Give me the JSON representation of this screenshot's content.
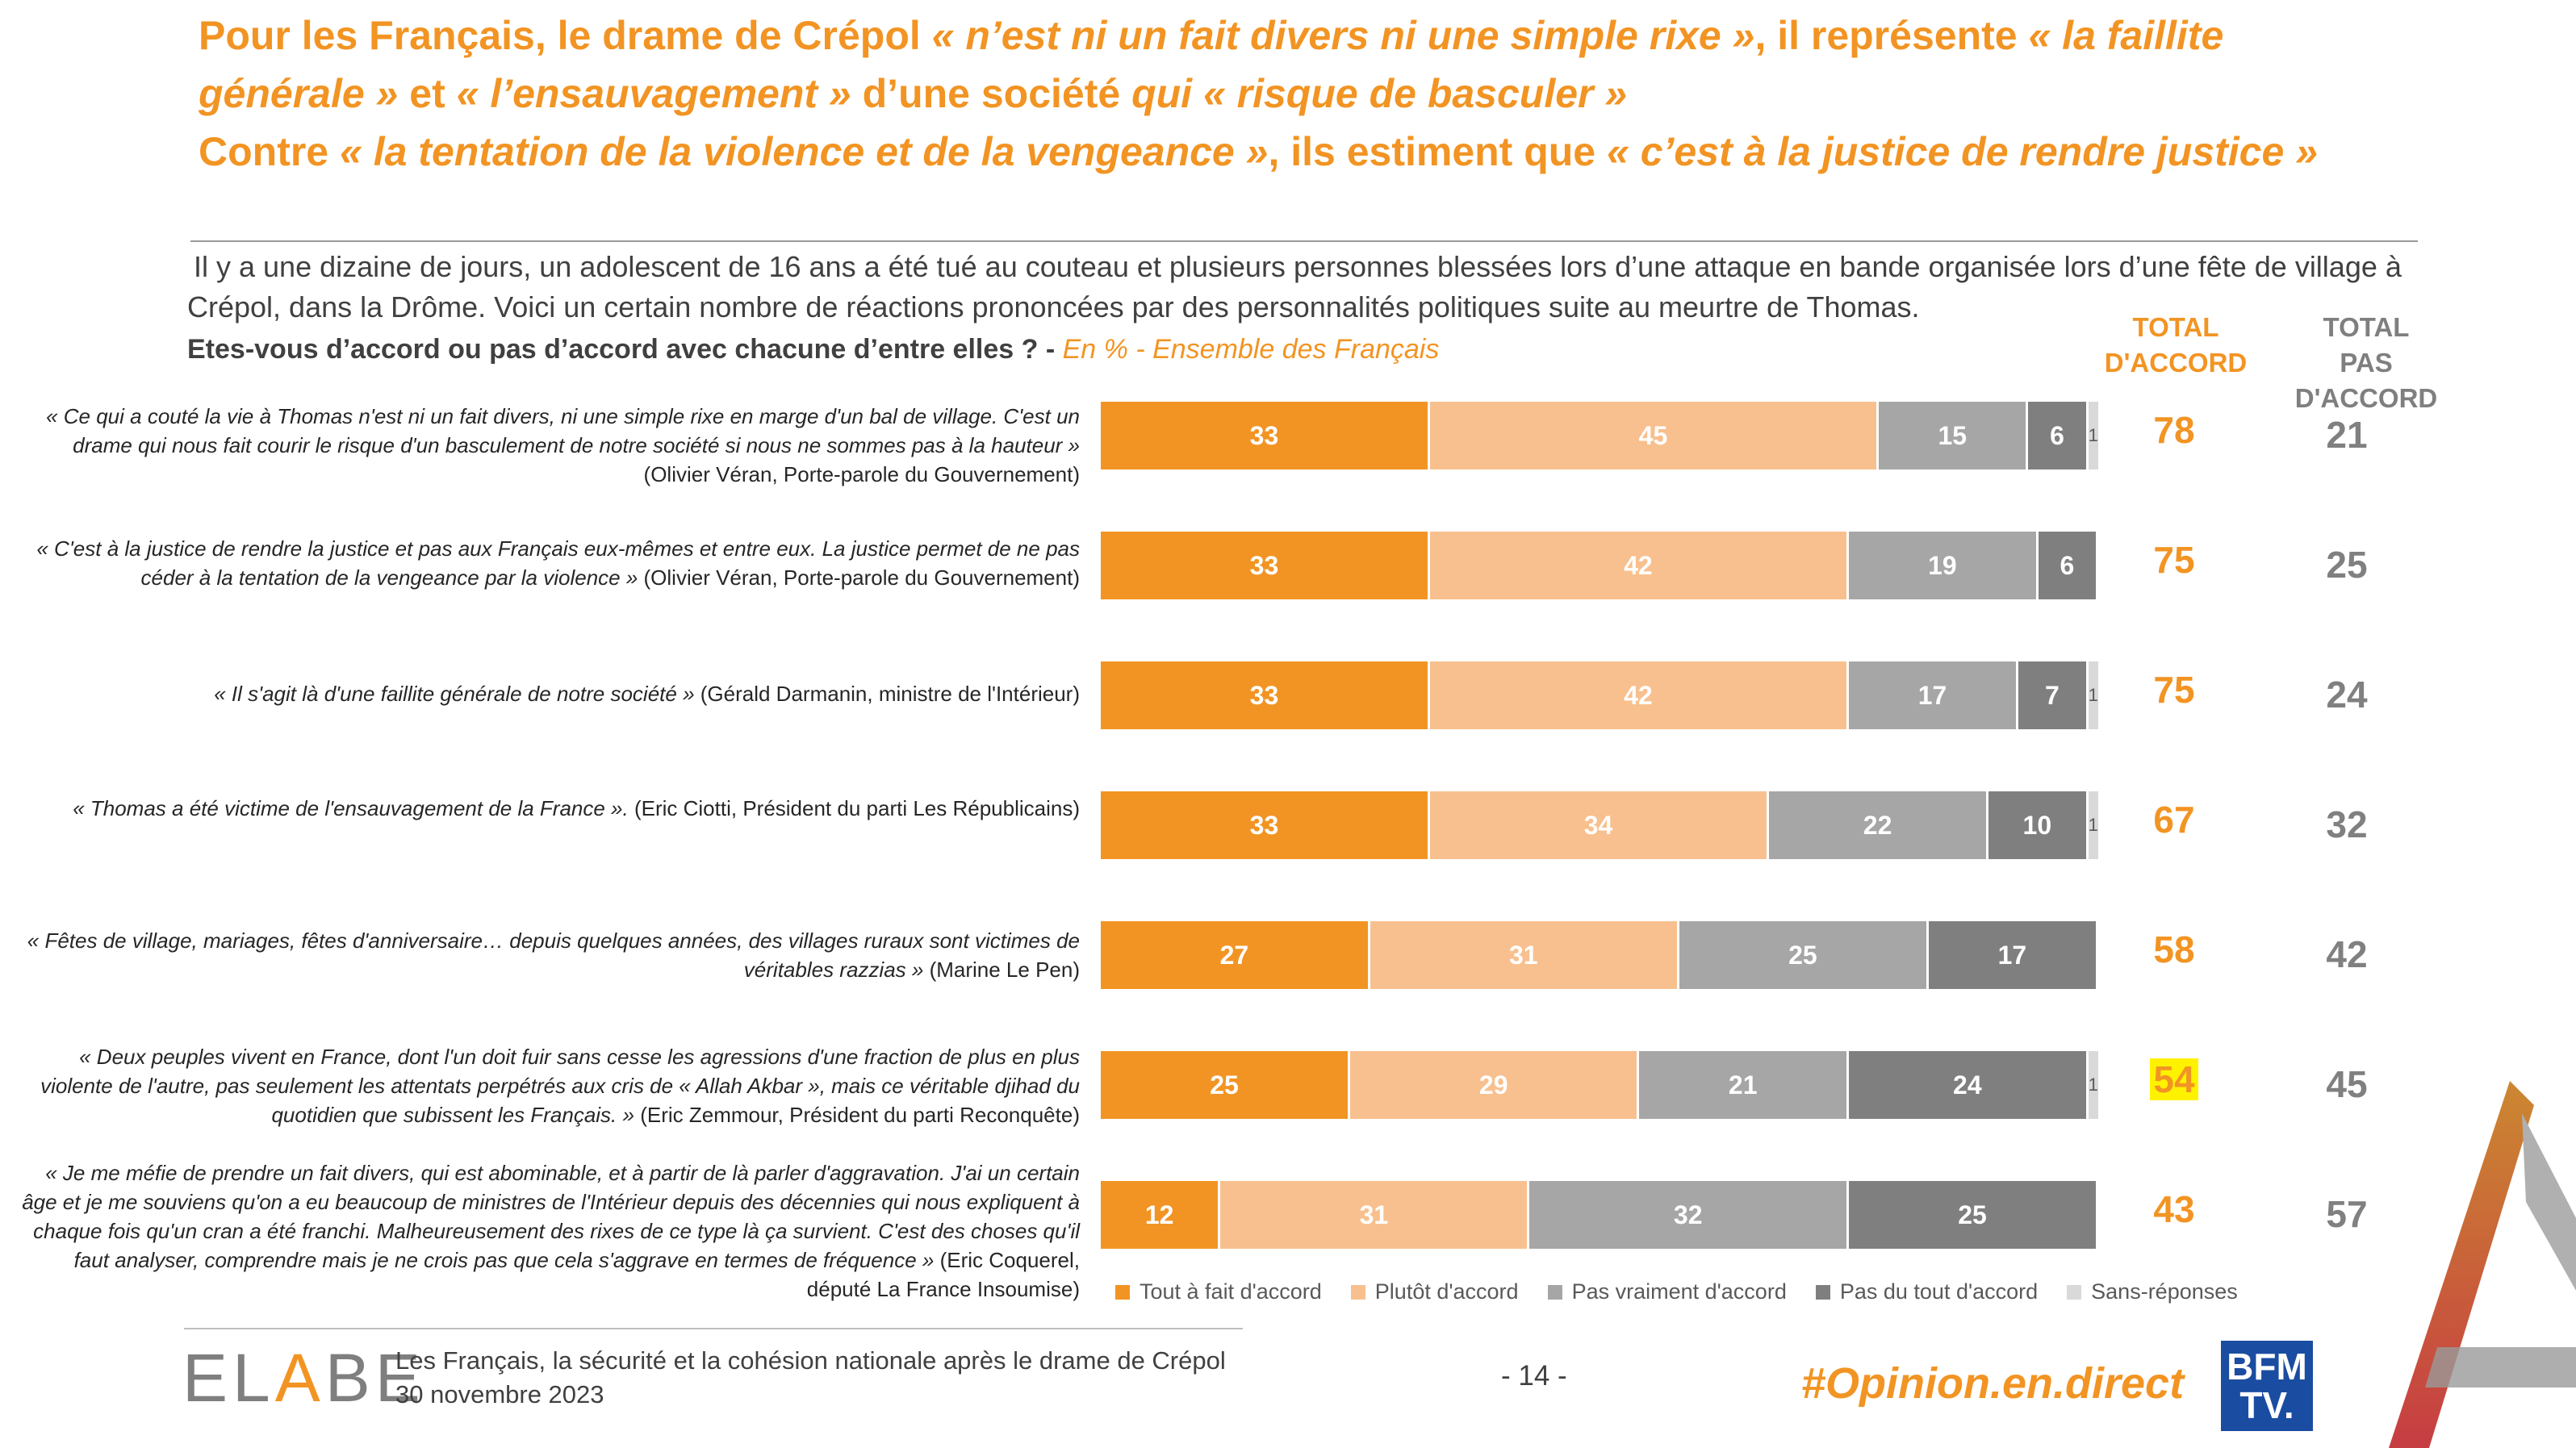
{
  "headline": {
    "line1_a": "Pour les Français, le drame de Crépol ",
    "line1_b": "« n’est ni un fait divers ni une simple rixe »",
    "line1_c": ", il représente ",
    "line1_d": "« la faillite générale »",
    "line1_e": " et ",
    "line1_f": "« l’ensauvagement »",
    "line1_g": " d’une société ",
    "line1_h": "qui « risque de basculer »",
    "line2_a": "Contre ",
    "line2_b": "« la tentation de la violence et de la vengeance »",
    "line2_c": ", ils estiment que ",
    "line2_d": "« c’est à la justice de rendre justice »"
  },
  "intro": "Il y a une dizaine de jours, un adolescent de 16 ans a été tué au couteau et plusieurs personnes blessées lors d’une attaque en bande organisée lors d’une fête de village à Crépol, dans la Drôme. Voici un certain nombre de réactions prononcées par des personnalités politiques suite au meurtre de Thomas.",
  "question": "Etes-vous d’accord ou pas d’accord avec chacune d’entre elles ? -",
  "question_sub": "En % - Ensemble des Français",
  "col_agree": [
    "TOTAL",
    "D'ACCORD"
  ],
  "col_disagree": [
    "TOTAL",
    "PAS D'ACCORD"
  ],
  "quotes": [
    {
      "quote": "« Ce qui a couté la vie à Thomas n'est ni un fait divers, ni une simple rixe en marge d'un bal de village. C'est un drame qui nous fait courir le risque d'un basculement de notre société si nous ne sommes pas à la hauteur »",
      "author": " (Olivier Véran, Porte-parole du Gouvernement)"
    },
    {
      "quote": "« C'est à la justice de rendre la justice et pas aux Français eux-mêmes et entre eux. La justice permet de ne pas céder à la tentation de la vengeance par la violence »",
      "author": " (Olivier Véran, Porte-parole du Gouvernement)"
    },
    {
      "quote": "« Il s'agit là d'une faillite générale de notre société »",
      "author": " (Gérald Darmanin, ministre de l'Intérieur)"
    },
    {
      "quote": "« Thomas a été victime de l'ensauvagement de la France ».",
      "author": " (Eric Ciotti, Président du parti Les Républicains)"
    },
    {
      "quote": "« Fêtes de village, mariages, fêtes d'anniversaire… depuis quelques années, des villages ruraux sont victimes de véritables razzias »",
      "author": " (Marine Le Pen)"
    },
    {
      "quote": "« Deux peuples vivent en France, dont l'un doit fuir sans cesse les agressions d'une fraction de plus en plus violente de l'autre, pas seulement les attentats perpétrés aux cris de « Allah Akbar », mais ce véritable djihad du quotidien que subissent les Français. »",
      "author": " (Eric Zemmour, Président du parti Reconquête)"
    },
    {
      "quote": "« Je me méfie de prendre un fait divers, qui est abominable, et à partir de là parler d'aggravation. J'ai un certain âge et je me souviens qu'on a eu beaucoup de ministres de l'Intérieur depuis des décennies qui nous expliquent à chaque fois qu'un cran a été franchi. Malheureusement des rixes de ce type là ça survient. C'est des choses qu'il faut analyser, comprendre mais je ne crois pas que cela s'aggrave en termes de fréquence »",
      "author": " (Eric Coquerel, député La France Insoumise)"
    }
  ],
  "chart_data": {
    "type": "bar",
    "orientation": "horizontal",
    "stacked": true,
    "categories": [
      "Véran 1",
      "Véran 2",
      "Darmanin",
      "Ciotti",
      "Le Pen",
      "Zemmour",
      "Coquerel"
    ],
    "series": [
      {
        "name": "Tout à fait d'accord",
        "color": "#F29423",
        "values": [
          33,
          33,
          33,
          33,
          27,
          25,
          12
        ]
      },
      {
        "name": "Plutôt d'accord",
        "color": "#F8C08E",
        "values": [
          45,
          42,
          42,
          34,
          31,
          29,
          31
        ]
      },
      {
        "name": "Pas vraiment d'accord",
        "color": "#A6A6A6",
        "values": [
          15,
          19,
          17,
          22,
          25,
          21,
          32
        ]
      },
      {
        "name": "Pas du tout d'accord",
        "color": "#7F7F7F",
        "values": [
          6,
          6,
          7,
          10,
          17,
          24,
          25
        ]
      },
      {
        "name": "Sans-réponses",
        "color": "#D9D9D9",
        "values": [
          1,
          0,
          1,
          1,
          0,
          1,
          0
        ]
      }
    ],
    "total_agree": [
      78,
      75,
      75,
      67,
      58,
      54,
      43
    ],
    "total_disagree": [
      21,
      25,
      24,
      32,
      42,
      45,
      57
    ],
    "highlight_row": 5,
    "xlim": [
      0,
      100
    ],
    "legend_position": "bottom"
  },
  "footer": {
    "logo": [
      "EL",
      "A",
      "BE"
    ],
    "title": "Les Français, la sécurité et la cohésion nationale après le drame de Crépol",
    "date": "30 novembre 2023",
    "page": "- 14 -",
    "hashtag": "#Opinion.en.direct",
    "bfm": [
      "BFM",
      "TV."
    ]
  }
}
